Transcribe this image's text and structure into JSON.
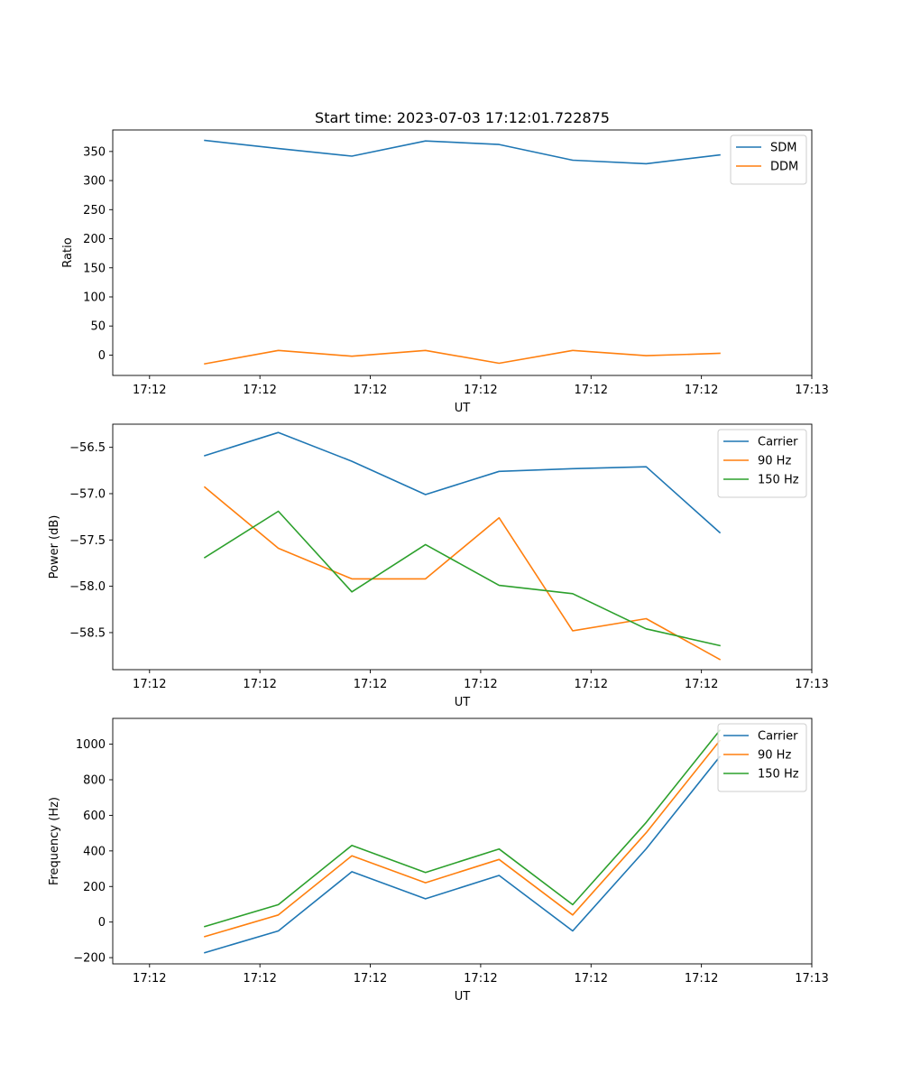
{
  "chart_data": [
    {
      "type": "line",
      "title": "Start time: 2023-07-03 17:12:01.722875",
      "xlabel": "UT",
      "ylabel": "Ratio",
      "xlim": [
        -0.5,
        9.0
      ],
      "ylim": [
        -35,
        387
      ],
      "x_ticks": [
        0,
        1.5,
        3,
        4.5,
        6,
        7.5,
        9
      ],
      "x_tick_labels": [
        "17:12",
        "17:12",
        "17:12",
        "17:12",
        "17:12",
        "17:12",
        "17:13"
      ],
      "y_ticks": [
        0,
        50,
        100,
        150,
        200,
        250,
        300,
        350
      ],
      "y_tick_labels": [
        "0",
        "50",
        "100",
        "150",
        "200",
        "250",
        "300",
        "350"
      ],
      "legend_position": "top-right",
      "x": [
        0.75,
        1.75,
        2.75,
        3.75,
        4.75,
        5.75,
        6.75,
        7.75
      ],
      "series": [
        {
          "name": "SDM",
          "color": "#1f77b4",
          "values": [
            369,
            355,
            342,
            368,
            362,
            335,
            329,
            344
          ]
        },
        {
          "name": "DDM",
          "color": "#ff7f0e",
          "values": [
            -15,
            8,
            -2,
            8,
            -14,
            8,
            -1,
            3
          ]
        }
      ]
    },
    {
      "type": "line",
      "title": "",
      "xlabel": "UT",
      "ylabel": "Power (dB)",
      "xlim": [
        -0.5,
        9.0
      ],
      "ylim": [
        -58.9,
        -56.25
      ],
      "x_ticks": [
        0,
        1.5,
        3,
        4.5,
        6,
        7.5,
        9
      ],
      "x_tick_labels": [
        "17:12",
        "17:12",
        "17:12",
        "17:12",
        "17:12",
        "17:12",
        "17:13"
      ],
      "y_ticks": [
        -56.5,
        -57.0,
        -57.5,
        -58.0,
        -58.5
      ],
      "y_tick_labels": [
        "−56.5",
        "−57.0",
        "−57.5",
        "−58.0",
        "−58.5"
      ],
      "legend_position": "top-right",
      "x": [
        0.75,
        1.75,
        2.75,
        3.75,
        4.75,
        5.75,
        6.75,
        7.75
      ],
      "series": [
        {
          "name": "Carrier",
          "color": "#1f77b4",
          "values": [
            -56.59,
            -56.34,
            -56.65,
            -57.01,
            -56.76,
            -56.73,
            -56.71,
            -57.42
          ]
        },
        {
          "name": "90 Hz",
          "color": "#ff7f0e",
          "values": [
            -56.93,
            -57.59,
            -57.92,
            -57.92,
            -57.26,
            -58.48,
            -58.35,
            -58.79
          ]
        },
        {
          "name": "150 Hz",
          "color": "#2ca02c",
          "values": [
            -57.69,
            -57.19,
            -58.06,
            -57.55,
            -57.99,
            -58.08,
            -58.46,
            -58.64
          ]
        }
      ]
    },
    {
      "type": "line",
      "title": "",
      "xlabel": "UT",
      "ylabel": "Frequency (Hz)",
      "xlim": [
        -0.5,
        9.0
      ],
      "ylim": [
        -235,
        1145
      ],
      "x_ticks": [
        0,
        1.5,
        3,
        4.5,
        6,
        7.5,
        9
      ],
      "x_tick_labels": [
        "17:12",
        "17:12",
        "17:12",
        "17:12",
        "17:12",
        "17:12",
        "17:13"
      ],
      "y_ticks": [
        -200,
        0,
        200,
        400,
        600,
        800,
        1000
      ],
      "y_tick_labels": [
        "−200",
        "0",
        "200",
        "400",
        "600",
        "800",
        "1000"
      ],
      "legend_position": "top-right",
      "x": [
        0.75,
        1.75,
        2.75,
        3.75,
        4.75,
        5.75,
        6.75,
        7.75
      ],
      "series": [
        {
          "name": "Carrier",
          "color": "#1f77b4",
          "values": [
            -172,
            -50,
            283,
            131,
            262,
            -50,
            412,
            930
          ]
        },
        {
          "name": "90 Hz",
          "color": "#ff7f0e",
          "values": [
            -82,
            40,
            373,
            221,
            352,
            40,
            502,
            1020
          ]
        },
        {
          "name": "150 Hz",
          "color": "#2ca02c",
          "values": [
            -25,
            98,
            431,
            279,
            411,
            98,
            560,
            1078
          ]
        }
      ]
    }
  ]
}
